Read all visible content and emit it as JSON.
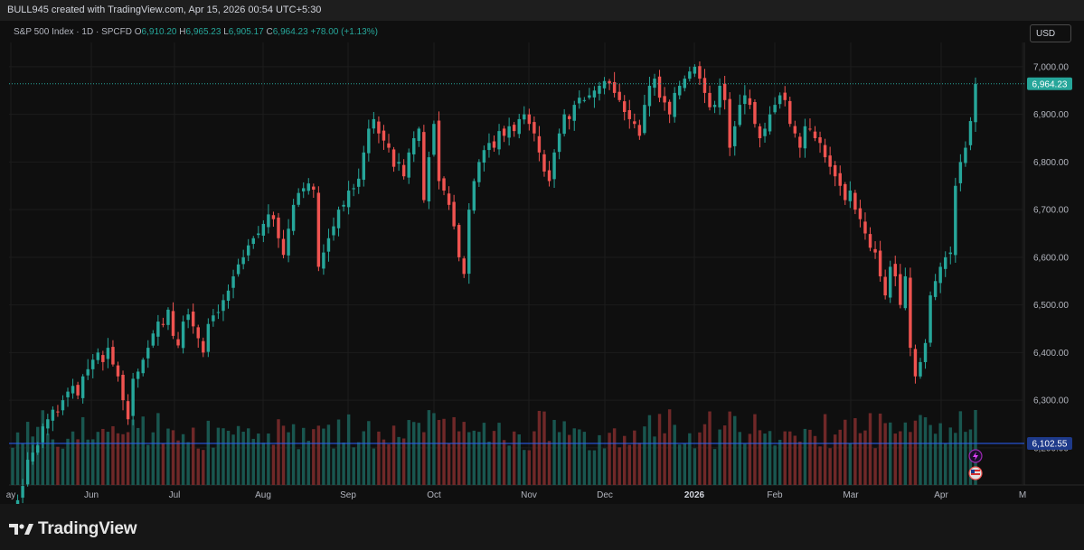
{
  "header": {
    "credit": "BULL945 created with TradingView.com, Apr 15, 2026 00:54 UTC+5:30"
  },
  "legend": {
    "symbol": "S&P 500 Index · 1D · SPCFD",
    "o_label": "O",
    "o": "6,910.20",
    "h_label": "H",
    "h": "6,965.23",
    "l_label": "L",
    "l": "6,905.17",
    "c_label": "C",
    "c": "6,964.23",
    "change": "+78.00 (+1.13%)"
  },
  "currency": "USD",
  "footer": {
    "brand": "TradingView"
  },
  "colors": {
    "up": "#26a69a",
    "down": "#ef5350",
    "price_tag": "#26a69a",
    "volume_line": "#2962ff"
  },
  "chart_data": {
    "type": "candlestick",
    "symbol": "S&P 500 Index",
    "interval": "1D",
    "y_ticks": [
      6200,
      6300,
      6400,
      6500,
      6600,
      6700,
      6800,
      6900,
      7000
    ],
    "y_tick_labels": [
      "6,200.00",
      "6,300.00",
      "6,400.00",
      "6,500.00",
      "6,600.00",
      "6,700.00",
      "6,800.00",
      "6,900.00",
      "7,000.00"
    ],
    "ylim": [
      6122,
      7051
    ],
    "x_labels": [
      "ay",
      "Jun",
      "Jul",
      "Aug",
      "Sep",
      "Oct",
      "Nov",
      "Dec",
      "2026",
      "Feb",
      "Mar",
      "Apr",
      "M"
    ],
    "x_label_bold": "2026",
    "last_price": 6964.23,
    "last_price_label": "6,964.23",
    "volume_line_label": "6,102.55",
    "grid": true,
    "closes": [
      6040,
      6090,
      6120,
      6175,
      6190,
      6205,
      6245,
      6260,
      6280,
      6275,
      6300,
      6318,
      6330,
      6310,
      6350,
      6365,
      6385,
      6400,
      6380,
      6410,
      6375,
      6350,
      6300,
      6260,
      6345,
      6360,
      6385,
      6410,
      6440,
      6465,
      6458,
      6490,
      6435,
      6415,
      6465,
      6480,
      6455,
      6430,
      6400,
      6460,
      6478,
      6485,
      6510,
      6530,
      6560,
      6585,
      6600,
      6625,
      6640,
      6650,
      6670,
      6690,
      6680,
      6640,
      6605,
      6660,
      6710,
      6735,
      6745,
      6755,
      6742,
      6580,
      6610,
      6640,
      6665,
      6700,
      6710,
      6740,
      6745,
      6765,
      6820,
      6870,
      6890,
      6860,
      6845,
      6830,
      6790,
      6800,
      6770,
      6820,
      6850,
      6870,
      6720,
      6810,
      6880,
      6760,
      6740,
      6710,
      6665,
      6600,
      6565,
      6700,
      6760,
      6800,
      6825,
      6840,
      6830,
      6865,
      6855,
      6875,
      6865,
      6890,
      6900,
      6880,
      6860,
      6820,
      6780,
      6760,
      6820,
      6860,
      6900,
      6890,
      6920,
      6935,
      6930,
      6940,
      6950,
      6960,
      6970,
      6965,
      6945,
      6930,
      6905,
      6890,
      6880,
      6855,
      6920,
      6960,
      6975,
      6935,
      6925,
      6900,
      6945,
      6960,
      6975,
      6990,
      7000,
      6975,
      6945,
      6915,
      6920,
      6960,
      6930,
      6830,
      6875,
      6920,
      6940,
      6920,
      6880,
      6850,
      6870,
      6900,
      6920,
      6940,
      6930,
      6880,
      6860,
      6830,
      6875,
      6870,
      6850,
      6840,
      6810,
      6790,
      6770,
      6750,
      6720,
      6740,
      6700,
      6680,
      6650,
      6620,
      6610,
      6560,
      6520,
      6580,
      6560,
      6500,
      6560,
      6410,
      6350,
      6380,
      6420,
      6520,
      6550,
      6580,
      6600,
      6610,
      6750,
      6800,
      6830,
      6886,
      6964
    ]
  }
}
